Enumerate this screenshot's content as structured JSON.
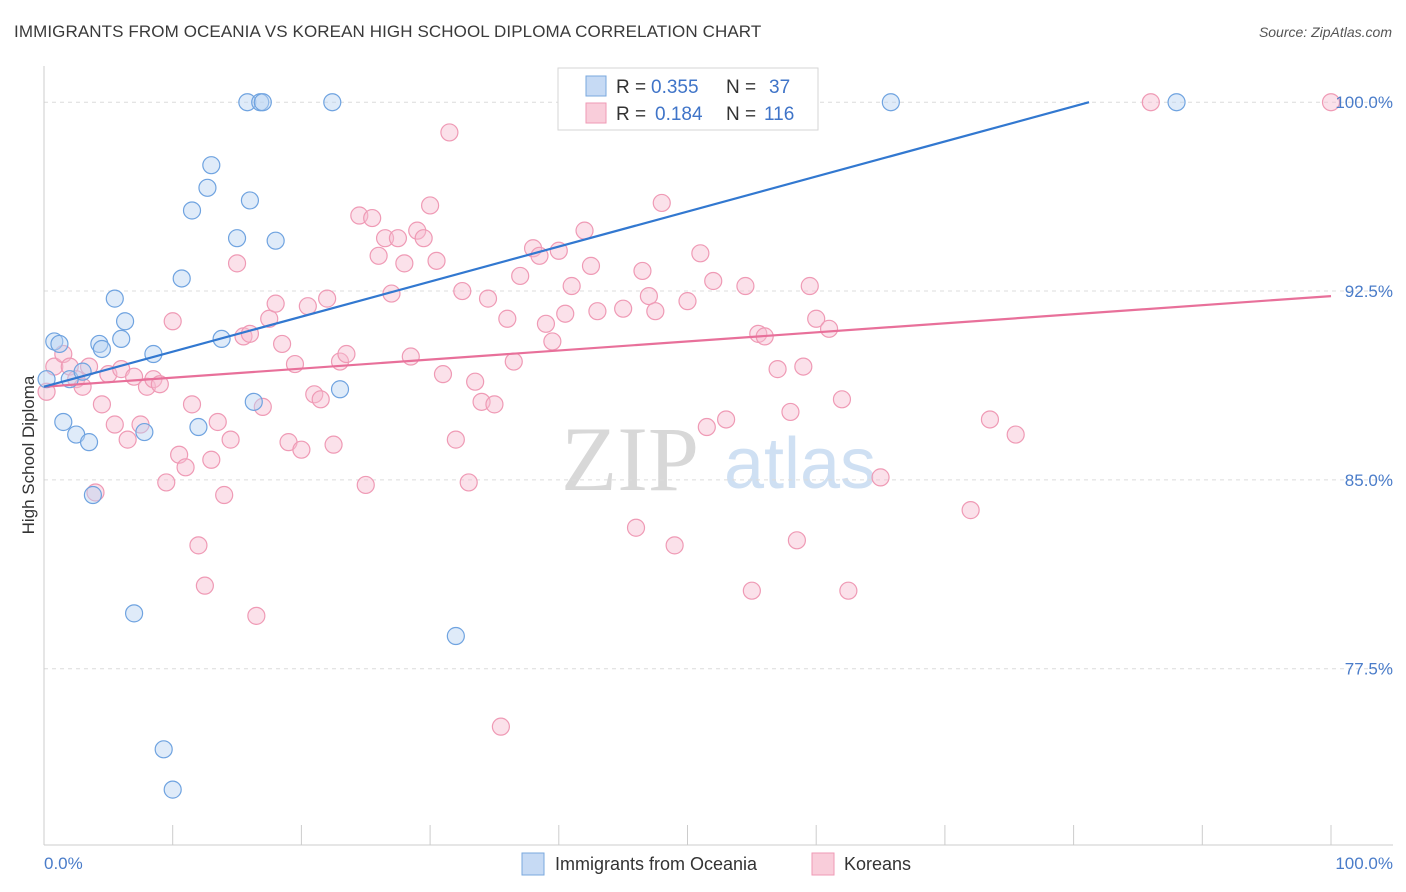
{
  "header": {
    "title": "IMMIGRANTS FROM OCEANIA VS KOREAN HIGH SCHOOL DIPLOMA CORRELATION CHART",
    "source": "Source: ZipAtlas.com"
  },
  "watermark": {
    "zip": "ZIP",
    "atlas": "atlas"
  },
  "legend_box": {
    "rows": [
      {
        "r_label": "R = ",
        "r_value": "0.355",
        "n_label": "N = ",
        "n_value": "37"
      },
      {
        "r_label": "R = ",
        "r_value": "0.184",
        "n_label": "N = ",
        "n_value": "116"
      }
    ]
  },
  "bottom_legend": [
    "Immigrants from Oceania",
    "Koreans"
  ],
  "chart_data": {
    "type": "scatter",
    "title": "IMMIGRANTS FROM OCEANIA VS KOREAN HIGH SCHOOL DIPLOMA CORRELATION CHART",
    "ylabel": "High School Diploma",
    "xlabel": "",
    "x_tick_labels": [
      "0.0%",
      "100.0%"
    ],
    "y_tick_labels": [
      "100.0%",
      "92.5%",
      "85.0%",
      "77.5%"
    ],
    "y_ticks": [
      100.0,
      92.5,
      85.0,
      77.5
    ],
    "xlim": [
      0,
      100
    ],
    "ylim": [
      70.5,
      101.2
    ],
    "grid": "horizontal dashed",
    "legend_position": "top-center",
    "colors": {
      "oceania": "#6fa3e0",
      "oceania_line": "#3278d0",
      "koreans": "#f09ab6",
      "koreans_line": "#e8709a",
      "tick_text": "#4a7cc9"
    },
    "series": [
      {
        "name": "Immigrants from Oceania",
        "R": 0.355,
        "N": 37,
        "trend": {
          "x": [
            0,
            81.2
          ],
          "y": [
            88.7,
            100.0
          ]
        },
        "points": [
          [
            0.2,
            89.0
          ],
          [
            0.8,
            90.5
          ],
          [
            1.2,
            90.4
          ],
          [
            1.5,
            87.3
          ],
          [
            2.0,
            89.0
          ],
          [
            2.5,
            86.8
          ],
          [
            3.0,
            89.3
          ],
          [
            3.5,
            86.5
          ],
          [
            3.8,
            84.4
          ],
          [
            4.3,
            90.4
          ],
          [
            4.5,
            90.2
          ],
          [
            5.5,
            92.2
          ],
          [
            6.0,
            90.6
          ],
          [
            6.3,
            91.3
          ],
          [
            7.0,
            79.7
          ],
          [
            7.8,
            86.9
          ],
          [
            8.5,
            90.0
          ],
          [
            9.3,
            74.3
          ],
          [
            10.0,
            72.7
          ],
          [
            10.7,
            93.0
          ],
          [
            11.5,
            95.7
          ],
          [
            12.0,
            87.1
          ],
          [
            12.7,
            96.6
          ],
          [
            13.0,
            97.5
          ],
          [
            13.8,
            90.6
          ],
          [
            15.0,
            94.6
          ],
          [
            15.8,
            100.0
          ],
          [
            16.0,
            96.1
          ],
          [
            16.3,
            88.1
          ],
          [
            16.8,
            100.0
          ],
          [
            17.0,
            100.0
          ],
          [
            18.0,
            94.5
          ],
          [
            22.4,
            100.0
          ],
          [
            23.0,
            88.6
          ],
          [
            32.0,
            78.8
          ],
          [
            65.8,
            100.0
          ],
          [
            88.0,
            100.0
          ]
        ]
      },
      {
        "name": "Koreans",
        "R": 0.184,
        "N": 116,
        "trend": {
          "x": [
            0,
            100
          ],
          "y": [
            88.7,
            92.3
          ]
        },
        "points": [
          [
            0.2,
            88.5
          ],
          [
            0.8,
            89.5
          ],
          [
            1.5,
            90.0
          ],
          [
            2.0,
            89.5
          ],
          [
            2.5,
            89.0
          ],
          [
            3.0,
            88.7
          ],
          [
            3.5,
            89.5
          ],
          [
            4.0,
            84.5
          ],
          [
            4.5,
            88.0
          ],
          [
            5.0,
            89.2
          ],
          [
            5.5,
            87.2
          ],
          [
            6.0,
            89.4
          ],
          [
            6.5,
            86.6
          ],
          [
            7.0,
            89.1
          ],
          [
            7.5,
            87.2
          ],
          [
            8.0,
            88.7
          ],
          [
            8.5,
            89.0
          ],
          [
            9.0,
            88.8
          ],
          [
            9.5,
            84.9
          ],
          [
            10.0,
            91.3
          ],
          [
            10.5,
            86.0
          ],
          [
            11.0,
            85.5
          ],
          [
            11.5,
            88.0
          ],
          [
            12.0,
            82.4
          ],
          [
            12.5,
            80.8
          ],
          [
            13.0,
            85.8
          ],
          [
            13.5,
            87.3
          ],
          [
            14.0,
            84.4
          ],
          [
            14.5,
            86.6
          ],
          [
            15.0,
            93.6
          ],
          [
            15.5,
            90.7
          ],
          [
            16.0,
            90.8
          ],
          [
            16.5,
            79.6
          ],
          [
            17.0,
            87.9
          ],
          [
            17.5,
            91.4
          ],
          [
            18.0,
            92.0
          ],
          [
            18.5,
            90.4
          ],
          [
            19.0,
            86.5
          ],
          [
            19.5,
            89.6
          ],
          [
            20.0,
            86.2
          ],
          [
            20.5,
            91.9
          ],
          [
            21.0,
            88.4
          ],
          [
            21.5,
            88.2
          ],
          [
            22.0,
            92.2
          ],
          [
            22.5,
            86.4
          ],
          [
            23.0,
            89.7
          ],
          [
            23.5,
            90.0
          ],
          [
            24.5,
            95.5
          ],
          [
            25.0,
            84.8
          ],
          [
            25.5,
            95.4
          ],
          [
            26.0,
            93.9
          ],
          [
            26.5,
            94.6
          ],
          [
            27.0,
            92.4
          ],
          [
            27.5,
            94.6
          ],
          [
            28.0,
            93.6
          ],
          [
            28.5,
            89.9
          ],
          [
            29.0,
            94.9
          ],
          [
            29.5,
            94.6
          ],
          [
            30.0,
            95.9
          ],
          [
            30.5,
            93.7
          ],
          [
            31.0,
            89.2
          ],
          [
            31.5,
            98.8
          ],
          [
            32.0,
            86.6
          ],
          [
            32.5,
            92.5
          ],
          [
            33.0,
            84.9
          ],
          [
            33.5,
            88.9
          ],
          [
            34.0,
            88.1
          ],
          [
            34.5,
            92.2
          ],
          [
            35.0,
            88.0
          ],
          [
            35.5,
            75.2
          ],
          [
            36.0,
            91.4
          ],
          [
            36.5,
            89.7
          ],
          [
            37.0,
            93.1
          ],
          [
            38.0,
            94.2
          ],
          [
            38.5,
            93.9
          ],
          [
            39.0,
            91.2
          ],
          [
            39.5,
            90.5
          ],
          [
            40.0,
            94.1
          ],
          [
            40.5,
            91.6
          ],
          [
            41.0,
            92.7
          ],
          [
            42.0,
            94.9
          ],
          [
            42.5,
            93.5
          ],
          [
            43.0,
            91.7
          ],
          [
            45.0,
            91.8
          ],
          [
            46.0,
            83.1
          ],
          [
            46.5,
            93.3
          ],
          [
            47.0,
            92.3
          ],
          [
            47.5,
            91.7
          ],
          [
            48.0,
            96.0
          ],
          [
            49.0,
            82.4
          ],
          [
            50.0,
            92.1
          ],
          [
            51.0,
            94.0
          ],
          [
            51.5,
            87.1
          ],
          [
            52.0,
            92.9
          ],
          [
            53.0,
            87.4
          ],
          [
            54.5,
            92.7
          ],
          [
            55.0,
            80.6
          ],
          [
            55.5,
            90.8
          ],
          [
            56.0,
            90.7
          ],
          [
            57.0,
            89.4
          ],
          [
            58.0,
            87.7
          ],
          [
            58.5,
            82.6
          ],
          [
            59.0,
            89.5
          ],
          [
            59.5,
            92.7
          ],
          [
            60.0,
            91.4
          ],
          [
            61.0,
            91.0
          ],
          [
            62.0,
            88.2
          ],
          [
            62.5,
            80.6
          ],
          [
            65.0,
            85.1
          ],
          [
            72.0,
            83.8
          ],
          [
            73.5,
            87.4
          ],
          [
            75.5,
            86.8
          ],
          [
            86.0,
            100.0
          ],
          [
            100.0,
            100.0
          ]
        ]
      }
    ]
  }
}
